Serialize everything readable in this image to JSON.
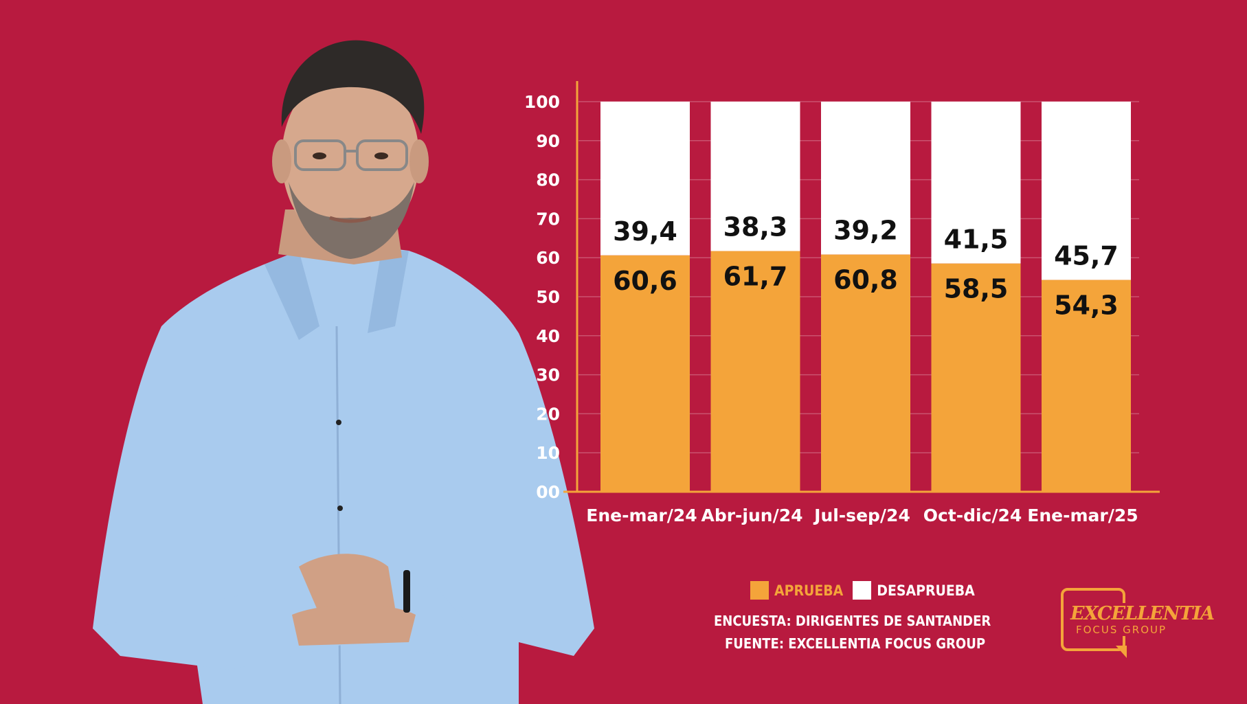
{
  "colors": {
    "background": "#b81a3f",
    "aprueba": "#f4a43a",
    "desaprueba": "#ffffff",
    "axis": "#f4a43a",
    "text": "#ffffff",
    "label_text": "#111111"
  },
  "chart_data": {
    "type": "bar",
    "stacked": true,
    "categories": [
      "Ene-mar/24",
      "Abr-jun/24",
      "Jul-sep/24",
      "Oct-dic/24",
      "Ene-mar/25"
    ],
    "series": [
      {
        "name": "APRUEBA",
        "values": [
          60.6,
          61.7,
          60.8,
          58.5,
          54.3
        ],
        "labels": [
          "60,6",
          "61,7",
          "60,8",
          "58,5",
          "54,3"
        ]
      },
      {
        "name": "DESAPRUEBA",
        "values": [
          39.4,
          38.3,
          39.2,
          41.5,
          45.7
        ],
        "labels": [
          "39,4",
          "38,3",
          "39,2",
          "41,5",
          "45,7"
        ]
      }
    ],
    "yticks": [
      "00",
      "10",
      "20",
      "30",
      "40",
      "50",
      "60",
      "70",
      "80",
      "90",
      "100"
    ],
    "ylim": [
      0,
      100
    ],
    "grid": true,
    "legend": "bottom"
  },
  "legend": {
    "aprueba": "APRUEBA",
    "desaprueba": "DESAPRUEBA"
  },
  "footer": {
    "encuesta": "ENCUESTA: DIRIGENTES DE SANTANDER",
    "fuente": "FUENTE: EXCELLENTIA FOCUS GROUP"
  },
  "logo": {
    "word1": "EXCELLENTIA",
    "word2": "FOCUS GROUP"
  }
}
